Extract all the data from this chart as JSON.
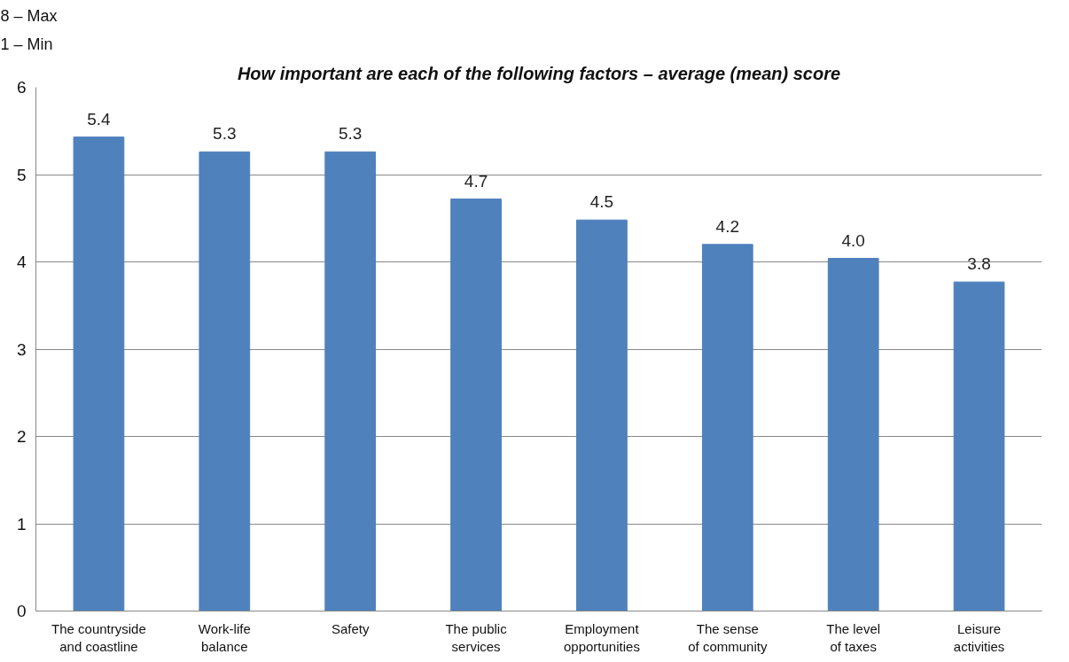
{
  "chart_data": {
    "type": "bar",
    "title": "How important are each of the following factors – average (mean) score",
    "annotations": [
      "8 – Max",
      "1 – Min"
    ],
    "categories": [
      "The countryside and coastline",
      "Work-life balance",
      "Safety",
      "The public services",
      "Employment opportunities",
      "The sense of community",
      "The level of taxes",
      "Leisure activities"
    ],
    "values": [
      5.43,
      5.26,
      5.26,
      4.72,
      4.48,
      4.2,
      4.04,
      3.77
    ],
    "value_labels": [
      "5.4",
      "5.3",
      "5.3",
      "4.7",
      "4.5",
      "4.2",
      "4.0",
      "3.8"
    ],
    "color": "#4f81bd",
    "ylim": [
      0,
      6
    ],
    "yticks": [
      0,
      1,
      2,
      3,
      4,
      5,
      6
    ],
    "grid": "y"
  }
}
